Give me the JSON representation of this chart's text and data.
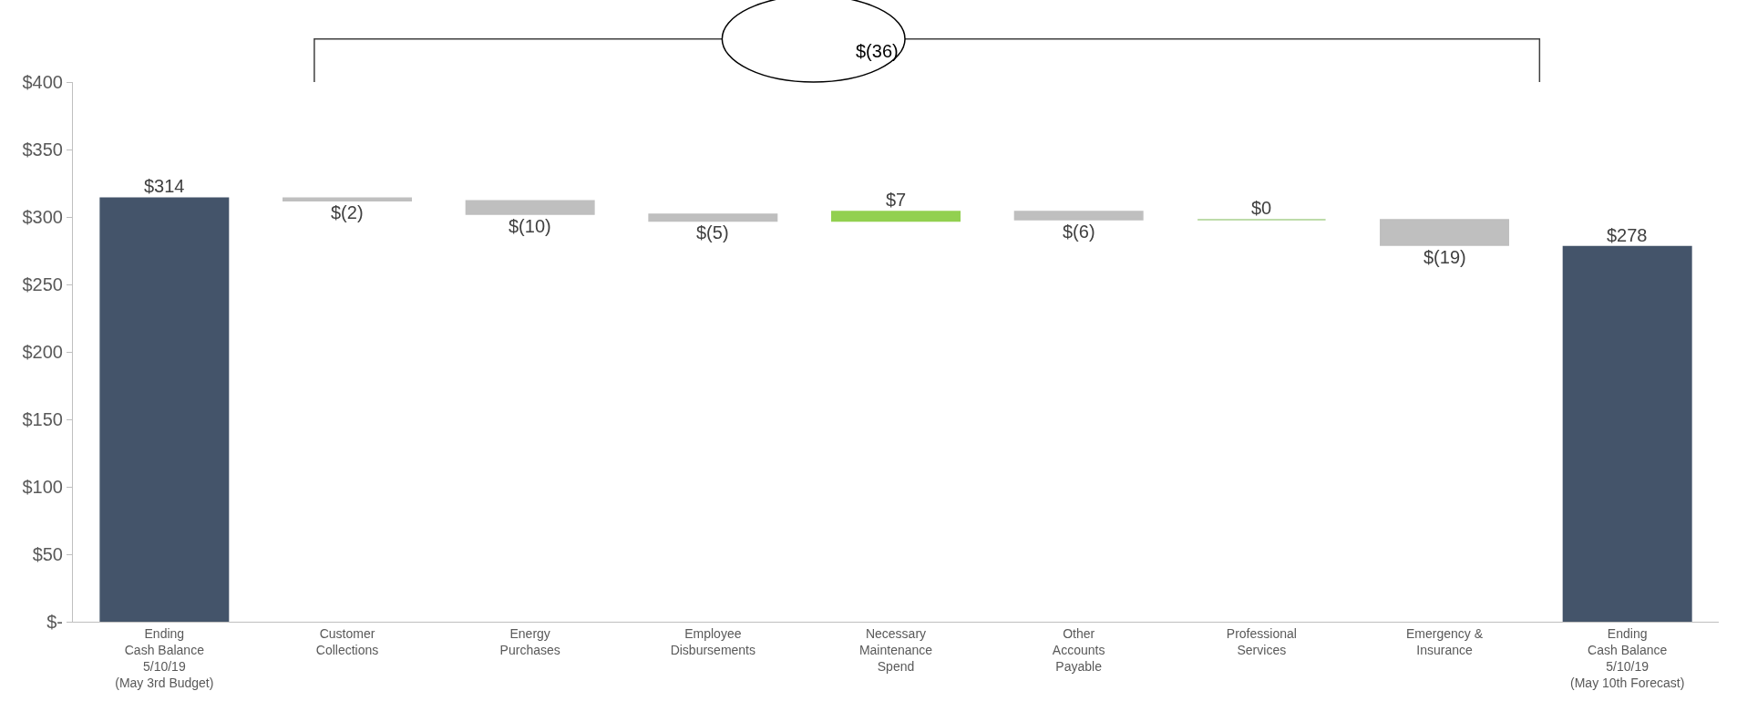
{
  "chart_data": {
    "type": "bar",
    "categories": [
      "Ending\nCash Balance\n5/10/19\n(May 3rd Budget)",
      "Customer\nCollections",
      "Energy\nPurchases",
      "Employee\nDisbursements",
      "Necessary\nMaintenance\nSpend",
      "Other\nAccounts\nPayable",
      "Professional\nServices",
      "Emergency &\nInsurance",
      "Ending\nCash Balance\n5/10/19\n(May 10th Forecast)"
    ],
    "values": [
      314,
      -2,
      -10,
      -5,
      7,
      -6,
      0,
      -19,
      278
    ],
    "base": [
      0,
      314,
      312,
      302,
      297,
      304,
      298,
      298,
      0
    ],
    "colors": [
      "#44546a",
      "#bfbfbf",
      "#bfbfbf",
      "#bfbfbf",
      "#92d050",
      "#bfbfbf",
      "#a9d18e",
      "#bfbfbf",
      "#44546a"
    ],
    "value_labels": [
      "$314",
      "$(2)",
      "$(10)",
      "$(5)",
      "$7",
      "$(6)",
      "$0",
      "$(19)",
      "$278"
    ],
    "ylim": [
      0,
      400
    ],
    "yticks": [
      {
        "value": 0,
        "label": "$-"
      },
      {
        "value": 50,
        "label": "$50"
      },
      {
        "value": 100,
        "label": "$100"
      },
      {
        "value": 150,
        "label": "$150"
      },
      {
        "value": 200,
        "label": "$200"
      },
      {
        "value": 250,
        "label": "$250"
      },
      {
        "value": 300,
        "label": "$300"
      },
      {
        "value": 350,
        "label": "$350"
      },
      {
        "value": 400,
        "label": "$400"
      }
    ],
    "annotations": [
      "$(36)"
    ]
  }
}
